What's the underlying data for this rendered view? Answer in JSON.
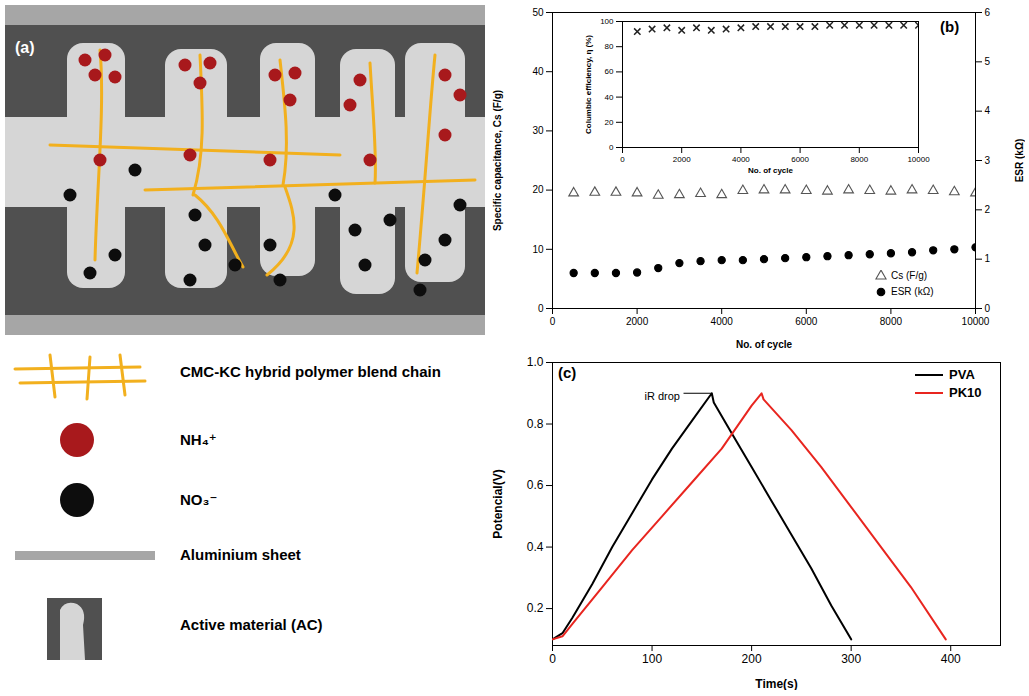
{
  "diagram": {
    "panel": "(a)",
    "legend": [
      {
        "label": "CMC-KC hybrid polymer blend chain"
      },
      {
        "label": "NH₄⁺"
      },
      {
        "label": "NO₃⁻"
      },
      {
        "label": "Aluminium sheet"
      },
      {
        "label": "Active material (AC)"
      }
    ]
  },
  "chart_data": [
    {
      "panel": "(b)",
      "type": "scatter",
      "x_label": "No. of cycle",
      "y_label": "Specific capacitance, Cs (F/g)",
      "y2_label": "ESR (kΩ)",
      "x": [
        500,
        1000,
        1500,
        2000,
        2500,
        3000,
        3500,
        4000,
        4500,
        5000,
        5500,
        6000,
        6500,
        7000,
        7500,
        8000,
        8500,
        9000,
        9500,
        10000
      ],
      "xlim": [
        0,
        10000
      ],
      "xticks": [
        0,
        2000,
        4000,
        6000,
        8000,
        10000
      ],
      "ylim": [
        0,
        50
      ],
      "yticks": [
        0,
        10,
        20,
        30,
        40,
        50
      ],
      "y2lim": [
        0,
        6
      ],
      "y2ticks": [
        0,
        1,
        2,
        3,
        4,
        5,
        6
      ],
      "legend": "bottom-right",
      "series": [
        {
          "name": "Cs (F/g)",
          "marker": "triangle-open",
          "color": "#555555",
          "values": [
            19.5,
            19.6,
            19.6,
            19.5,
            19.1,
            19.2,
            19.4,
            19.2,
            19.9,
            20.0,
            20.0,
            19.9,
            19.8,
            20.0,
            19.9,
            19.8,
            20.0,
            19.9,
            19.7,
            19.5
          ]
        },
        {
          "name": "ESR (kΩ)",
          "axis": "y2",
          "marker": "circle",
          "color": "#000000",
          "values": [
            0.72,
            0.72,
            0.72,
            0.73,
            0.82,
            0.92,
            0.96,
            0.98,
            0.98,
            1.0,
            1.02,
            1.04,
            1.06,
            1.08,
            1.1,
            1.12,
            1.14,
            1.18,
            1.2,
            1.24
          ]
        }
      ],
      "inset": {
        "type": "scatter",
        "x_label": "No. of cycle",
        "y_label": "Columbic efficiency, η (%)",
        "x": [
          500,
          1000,
          1500,
          2000,
          2500,
          3000,
          3500,
          4000,
          4500,
          5000,
          5500,
          6000,
          6500,
          7000,
          7500,
          8000,
          8500,
          9000,
          9500,
          10000
        ],
        "xlim": [
          0,
          10000
        ],
        "xticks": [
          0,
          2000,
          4000,
          6000,
          8000,
          10000
        ],
        "ylim": [
          0,
          100
        ],
        "yticks": [
          0,
          20,
          40,
          60,
          80,
          100
        ],
        "marker": "x",
        "color": "#222222",
        "values": [
          92,
          94,
          95,
          93,
          95,
          93,
          94,
          95,
          96,
          96,
          96,
          96,
          96,
          97,
          97,
          97,
          97,
          97,
          97,
          97
        ]
      }
    },
    {
      "panel": "(c)",
      "type": "line",
      "x_label": "Time(s)",
      "y_label": "Potencial(V)",
      "xlim": [
        0,
        450
      ],
      "xticks": [
        0,
        100,
        200,
        300,
        400
      ],
      "ylim": [
        0.08,
        1.0
      ],
      "yticks": [
        0.2,
        0.4,
        0.6,
        0.8,
        {
          "value": 1.0,
          "label": "1.0"
        }
      ],
      "legend": "top-right",
      "annotations": [
        "iR drop"
      ],
      "series": [
        {
          "name": "PVA",
          "color": "#000000",
          "x": [
            0,
            10,
            20,
            40,
            60,
            80,
            100,
            120,
            140,
            160,
            162,
            180,
            200,
            220,
            240,
            260,
            280,
            300
          ],
          "values": [
            0.1,
            0.12,
            0.17,
            0.28,
            0.4,
            0.51,
            0.62,
            0.72,
            0.81,
            0.9,
            0.87,
            0.77,
            0.66,
            0.55,
            0.44,
            0.33,
            0.21,
            0.1
          ]
        },
        {
          "name": "PK10",
          "color": "#e8251f",
          "x": [
            0,
            10,
            20,
            50,
            80,
            110,
            140,
            170,
            200,
            210,
            212,
            240,
            270,
            300,
            330,
            360,
            395
          ],
          "values": [
            0.1,
            0.11,
            0.15,
            0.27,
            0.39,
            0.5,
            0.61,
            0.72,
            0.86,
            0.9,
            0.88,
            0.78,
            0.66,
            0.53,
            0.4,
            0.27,
            0.1
          ]
        }
      ]
    }
  ]
}
